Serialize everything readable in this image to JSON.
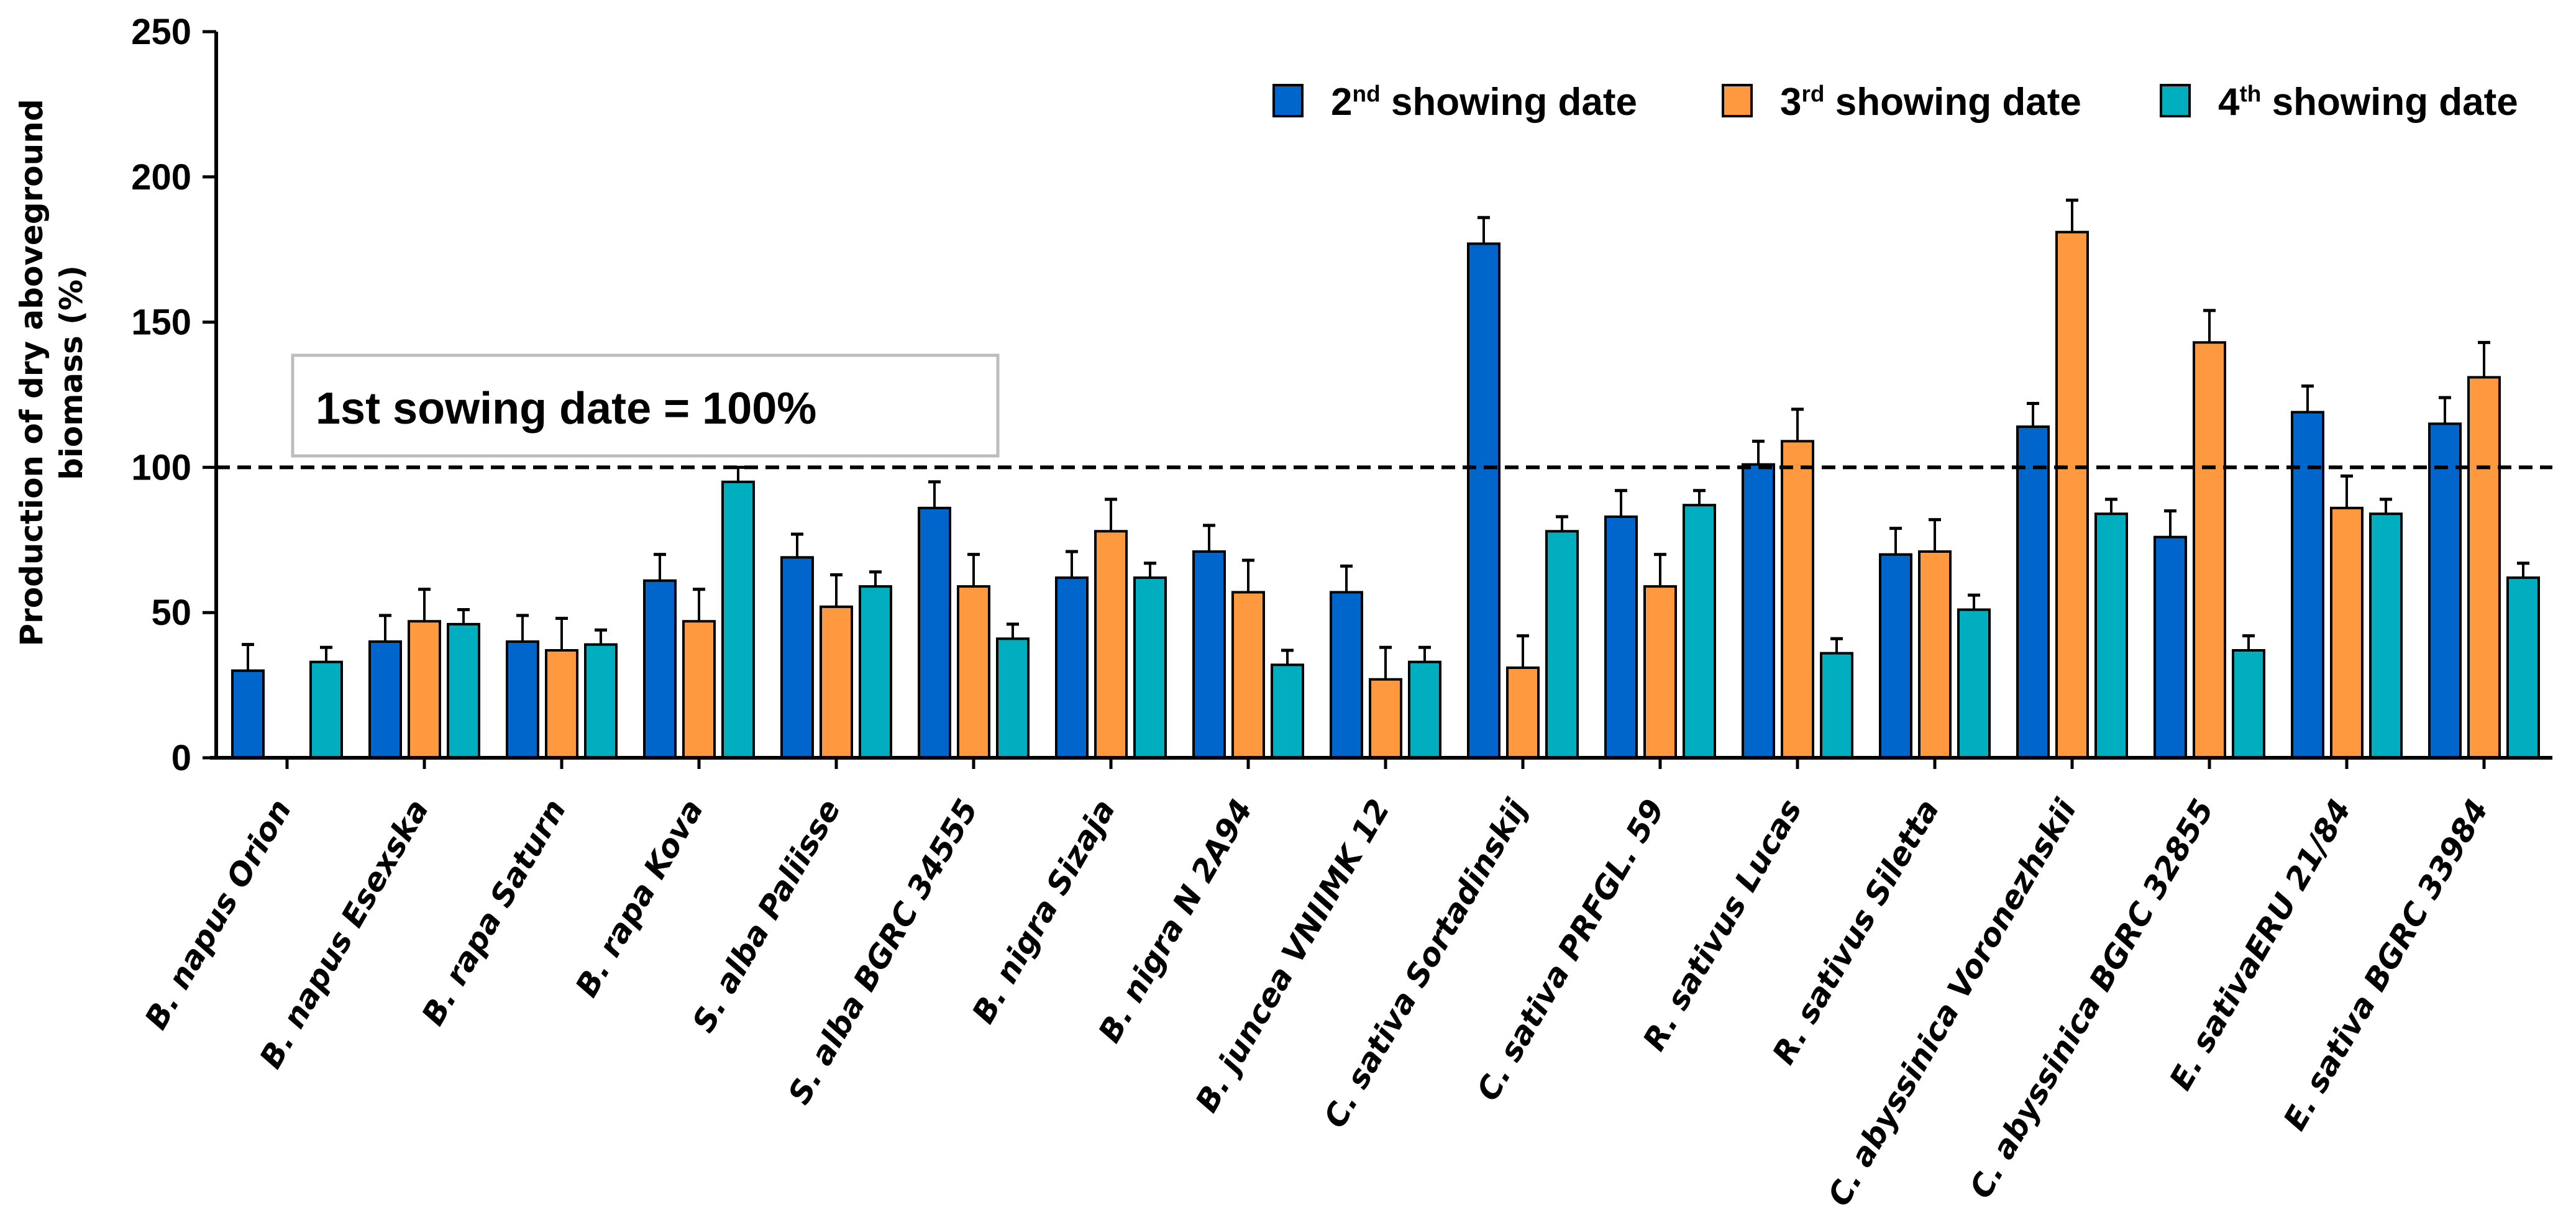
{
  "chart_data": {
    "type": "bar",
    "title": "",
    "xlabel": "",
    "ylabel": "Production of dry aboveground biomass (%)",
    "ylim": [
      0,
      250
    ],
    "yticks": [
      0,
      50,
      100,
      150,
      200,
      250
    ],
    "grid": false,
    "legend_position": "top-right",
    "categories": [
      "B. napus Orion",
      "B. napus Esexska",
      "B. rapa Saturn",
      "B. rapa Kova",
      "S. alba Paliisse",
      "S. alba BGRC 34555",
      "B. nigra Sizaja",
      "B. nigra N 2A94",
      "B. juncea VNIIMK 12",
      "C. sativa Sortadinskij",
      "C. sativa PRFGL. 59",
      "R. sativus Lucas",
      "R. sativus Siletta",
      "C. abyssinica Voronezhskii",
      "C. abyssinica BGRC 32855",
      "E. sativaERU 21/84",
      "E. sativa BGRC 33984"
    ],
    "series": [
      {
        "name": "2nd showing date",
        "color": "#0066CC",
        "values": [
          30,
          40,
          40,
          61,
          69,
          86,
          62,
          71,
          57,
          177,
          83,
          101,
          70,
          114,
          76,
          119,
          115
        ],
        "errors": [
          9,
          9,
          9,
          9,
          8,
          9,
          9,
          9,
          9,
          9,
          9,
          8,
          9,
          8,
          9,
          9,
          9
        ]
      },
      {
        "name": "3rd showing date",
        "color": "#FF9940",
        "values": [
          null,
          47,
          37,
          47,
          52,
          59,
          78,
          57,
          27,
          31,
          59,
          109,
          71,
          181,
          143,
          86,
          131
        ],
        "errors": [
          null,
          11,
          11,
          11,
          11,
          11,
          11,
          11,
          11,
          11,
          11,
          11,
          11,
          11,
          11,
          11,
          12
        ]
      },
      {
        "name": "4th showing date",
        "color": "#00AEBF",
        "values": [
          33,
          46,
          39,
          95,
          59,
          41,
          62,
          32,
          33,
          78,
          87,
          36,
          51,
          84,
          37,
          84,
          62
        ],
        "errors": [
          5,
          5,
          5,
          5,
          5,
          5,
          5,
          5,
          5,
          5,
          5,
          5,
          5,
          5,
          5,
          5,
          5
        ]
      }
    ],
    "reference_line": {
      "value": 100,
      "style": "dashed"
    },
    "annotation": "1st sowing date = 100%"
  }
}
